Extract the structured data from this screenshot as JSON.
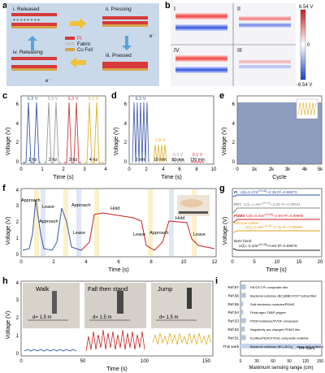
{
  "panel_letters": [
    "a",
    "b",
    "c",
    "d",
    "e",
    "f",
    "g",
    "h",
    "i"
  ],
  "a": {
    "steps": [
      "i. Released",
      "ii. Pressing",
      "iii. Pressed",
      "iv. Releasing"
    ],
    "legend": [
      "PI",
      "Fabric",
      "Cu Foil"
    ],
    "electron": "e⁻"
  },
  "b": {
    "labels": [
      "I",
      "II",
      "IV",
      "III"
    ],
    "cbar_top": "6.54 V",
    "cbar_mid": "0",
    "cbar_bot": "-6.54 V"
  },
  "c": {
    "ylabel": "Voltage (V)",
    "xlabel": "Time (s)",
    "yticks": [
      "0",
      "2",
      "4",
      "6"
    ],
    "xticks": [
      "0",
      "1",
      "2",
      "3",
      "4"
    ],
    "freqs": [
      "1 hz",
      "2 hz",
      "3 hz",
      "4 hz"
    ],
    "peaks": [
      "6.3 V",
      "6.3 V",
      "6.3 V",
      "6.3 V"
    ],
    "colors": [
      "#3a56a8",
      "#9a9a9a",
      "#d13a3a",
      "#e0b12a"
    ]
  },
  "d": {
    "ylabel": "Voltage (V)",
    "xlabel": "Time (s)",
    "yticks": [
      "0",
      "2",
      "4",
      "6"
    ],
    "xticks": [
      "0",
      "2",
      "4",
      "6",
      "8",
      "10"
    ],
    "gaps": [
      "2 mm",
      "10 mm",
      "50 mm",
      "150 mm"
    ],
    "peaks": [
      "6.3 V",
      "1.8 V",
      "0.3 V",
      "0.1 V"
    ],
    "colors": [
      "#3a56a8",
      "#e0b12a",
      "#9a9a9a",
      "#d13a3a"
    ]
  },
  "e": {
    "ylabel": "Voltage (V)",
    "xlabel": "Cycle",
    "yticks": [
      "0",
      "2",
      "4",
      "6"
    ],
    "xticks": [
      "0",
      "1k",
      "2k",
      "3k",
      "4k",
      "5k"
    ]
  },
  "f": {
    "ylabel": "Voltage (V)",
    "xlabel": "Time (s)",
    "yticks": [
      "0",
      "1",
      "2",
      "3",
      "4"
    ],
    "xticks": [
      "0",
      "2",
      "4",
      "6",
      "8",
      "10",
      "12"
    ],
    "annotations": [
      "Approach",
      "Leave",
      "Approach",
      "Approach",
      "Leave",
      "Hold",
      "Leave",
      "Approach",
      "Hold",
      "Leave"
    ]
  },
  "g": {
    "ylabel": "Voltage (V)",
    "xlabel": "Time (s)",
    "xticks": [
      "0",
      "5",
      "10",
      "15",
      "20"
    ],
    "series": [
      {
        "name": "PI",
        "eq": "U(t)=0.27e",
        "exp": "(-t/0.46)",
        "tail": "+4.38  R²=0.99973",
        "color": "#2a4fb0"
      },
      {
        "name": "PET",
        "eq": "U(t)=1.28e",
        "exp": "(-t/0.46)",
        "tail": "+3.66  R²=0.99941",
        "color": "#8a8a8a"
      },
      {
        "name": "PDMS",
        "eq": "U(t)=0.91e",
        "exp": "(-t/0.46)",
        "tail": "+2.99  R²=0.99965",
        "color": "#d01f1f"
      },
      {
        "name": "Silicone rubber",
        "eq": "U(t)=0.15e",
        "exp": "(-t/0.46)",
        "tail": "+2.36  R²=0.99966",
        "color": "#e3a21a"
      },
      {
        "name": "Bare hand",
        "eq": "U(t)=-0.10e",
        "exp": "(-t/0.46)",
        "tail": "+0.60  R²=0.99976",
        "color": "#222222"
      }
    ]
  },
  "h": {
    "ylabel": "Voltage (V)",
    "xlabel": "Time (s)",
    "yticks": [
      "0",
      "1",
      "2",
      "3",
      "4"
    ],
    "xticks": [
      "0",
      "50",
      "100",
      "150"
    ],
    "scenes": [
      "Walk",
      "Fall then stand",
      "Jump"
    ],
    "distance": "d= 1.5 m"
  },
  "i": {
    "xlabel": "Maximum sensing range (cm)",
    "xticks": [
      "0",
      "30",
      "60",
      "90",
      "120",
      "150"
    ],
    "refs": [
      "Ref.57",
      "Ref.56",
      "Ref.55",
      "Ref.54",
      "Ref.53",
      "Ref.52",
      "Ref.51",
      "This work"
    ],
    "desc": [
      "PE/CKT-PI composite film",
      "Bacterial cellulose (BC)@BC/CNT helical fiber",
      "Soft electronic modules/PDMS",
      "Finial-ager-TABP gripper",
      "PVDF/cellulose/PVDF nanopaper",
      "Negatively pre-charged PDMS film",
      "Ecoflex/PEDOT:PSS composite material",
      "Bacterial cellulose (BC)-BC/graphene helical fibers"
    ],
    "legend": "TPP fabric",
    "values": [
      10,
      10,
      5,
      5,
      10,
      8,
      10,
      150
    ]
  }
}
